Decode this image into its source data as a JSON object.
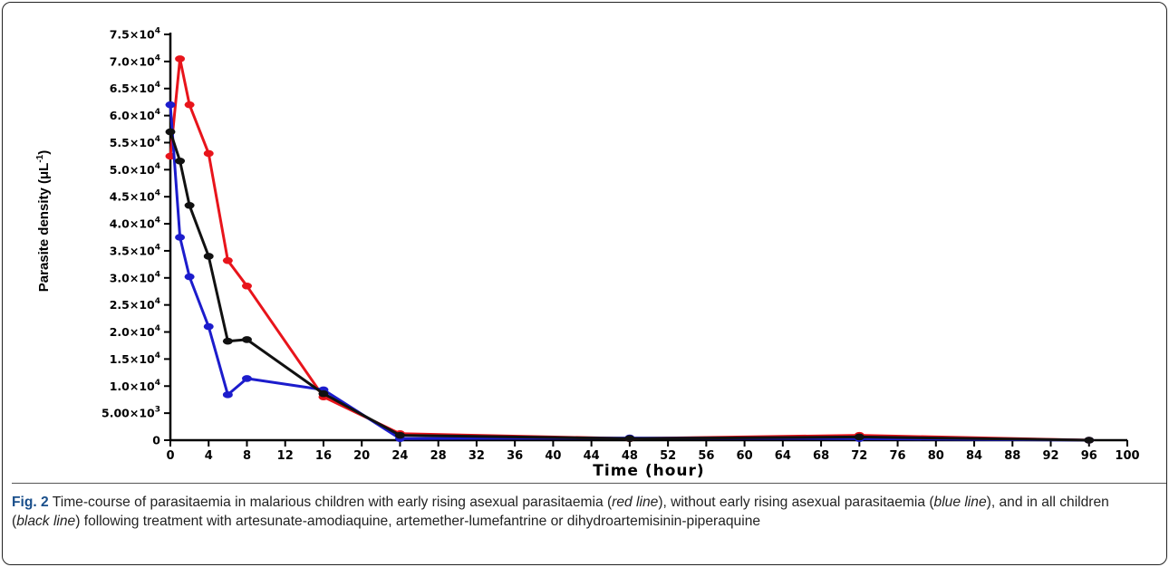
{
  "chart_data": {
    "type": "line",
    "xlabel": "Time (hour)",
    "ylabel": "Parasite density (μL",
    "ylabel_sup": "-1",
    "ylabel_close": ")",
    "xlim": [
      0,
      100
    ],
    "ylim": [
      0,
      75000
    ],
    "x_ticks": [
      0,
      4,
      8,
      12,
      16,
      20,
      24,
      28,
      32,
      36,
      40,
      44,
      48,
      52,
      56,
      60,
      64,
      68,
      72,
      76,
      80,
      84,
      88,
      92,
      96,
      100
    ],
    "y_ticks": [
      {
        "value": 0,
        "label": "0"
      },
      {
        "value": 5000,
        "mant": "5.00",
        "exp": "3"
      },
      {
        "value": 10000,
        "mant": "1.0",
        "exp": "4"
      },
      {
        "value": 15000,
        "mant": "1.5",
        "exp": "4"
      },
      {
        "value": 20000,
        "mant": "2.0",
        "exp": "4"
      },
      {
        "value": 25000,
        "mant": "2.5",
        "exp": "4"
      },
      {
        "value": 30000,
        "mant": "3.0",
        "exp": "4"
      },
      {
        "value": 35000,
        "mant": "3.5",
        "exp": "4"
      },
      {
        "value": 40000,
        "mant": "4.0",
        "exp": "4"
      },
      {
        "value": 45000,
        "mant": "4.5",
        "exp": "4"
      },
      {
        "value": 50000,
        "mant": "5.0",
        "exp": "4"
      },
      {
        "value": 55000,
        "mant": "5.5",
        "exp": "4"
      },
      {
        "value": 60000,
        "mant": "6.0",
        "exp": "4"
      },
      {
        "value": 65000,
        "mant": "6.5",
        "exp": "4"
      },
      {
        "value": 70000,
        "mant": "7.0",
        "exp": "4"
      },
      {
        "value": 75000,
        "mant": "7.5",
        "exp": "4"
      }
    ],
    "grid": false,
    "series": [
      {
        "color": "#e8141b",
        "x": [
          0,
          1,
          2,
          4,
          6,
          8,
          16,
          24,
          48,
          72,
          96
        ],
        "y": [
          52500,
          70500,
          62000,
          53000,
          33200,
          28500,
          8000,
          1200,
          300,
          900,
          0
        ]
      },
      {
        "color": "#1c1ccc",
        "x": [
          0,
          1,
          2,
          4,
          6,
          8,
          16,
          24,
          48,
          72,
          96
        ],
        "y": [
          62000,
          37500,
          30200,
          21000,
          8400,
          11400,
          9300,
          300,
          400,
          300,
          0
        ]
      },
      {
        "color": "#111111",
        "x": [
          0,
          1,
          2,
          4,
          6,
          8,
          16,
          24,
          48,
          72,
          96
        ],
        "y": [
          57000,
          51600,
          43400,
          34000,
          18300,
          18600,
          8600,
          900,
          300,
          600,
          0
        ]
      }
    ]
  },
  "caption": {
    "fig_label": "Fig. 2",
    "t1": " Time-course of parasitaemia in malarious children with early rising asexual parasitaemia (",
    "i1": "red line",
    "t2": "), without early rising asexual parasitaemia (",
    "i2": "blue line",
    "t3": "), and in all children (",
    "i3": "black line",
    "t4": ") following treatment with artesunate-amodiaquine, artemether-lumefantrine or dihydroartemisinin-piperaquine"
  }
}
